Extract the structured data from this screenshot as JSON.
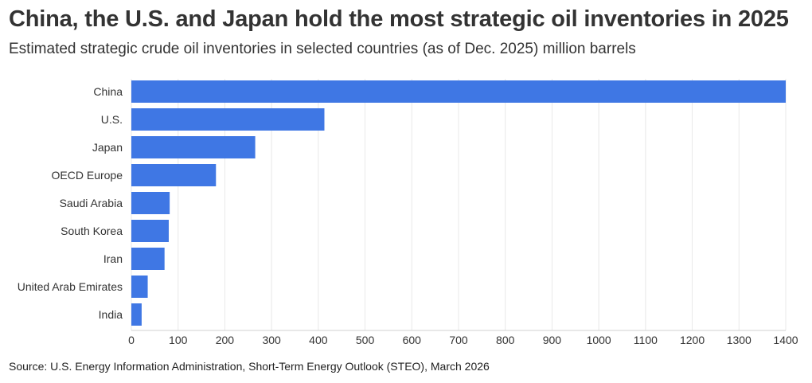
{
  "header": {
    "title": "China, the U.S. and Japan hold the most strategic oil inventories in 2025",
    "subtitle": "Estimated strategic crude oil inventories in selected countries (as of Dec. 2025) million barrels"
  },
  "footer": {
    "source": "Source: U.S. Energy Information Administration, Short-Term Energy Outlook (STEO), March 2026"
  },
  "colors": {
    "bar": "#3f77e4",
    "grid": "#e8e8e8",
    "axis": "#d0d0d0"
  },
  "chart_data": {
    "type": "bar",
    "orientation": "horizontal",
    "title": "China, the U.S. and Japan hold the most strategic oil inventories in 2025",
    "subtitle": "Estimated strategic crude oil inventories in selected countries (as of Dec. 2025) million barrels",
    "categories": [
      "China",
      "U.S.",
      "Japan",
      "OECD Europe",
      "Saudi Arabia",
      "South Korea",
      "Iran",
      "United Arab Emirates",
      "India"
    ],
    "values": [
      1400,
      413,
      265,
      181,
      82,
      80,
      71,
      35,
      22
    ],
    "xlim": [
      0,
      1400
    ],
    "xticks": [
      0,
      100,
      200,
      300,
      400,
      500,
      600,
      700,
      800,
      900,
      1000,
      1100,
      1200,
      1300,
      1400
    ],
    "grid": true,
    "legend": "none"
  }
}
